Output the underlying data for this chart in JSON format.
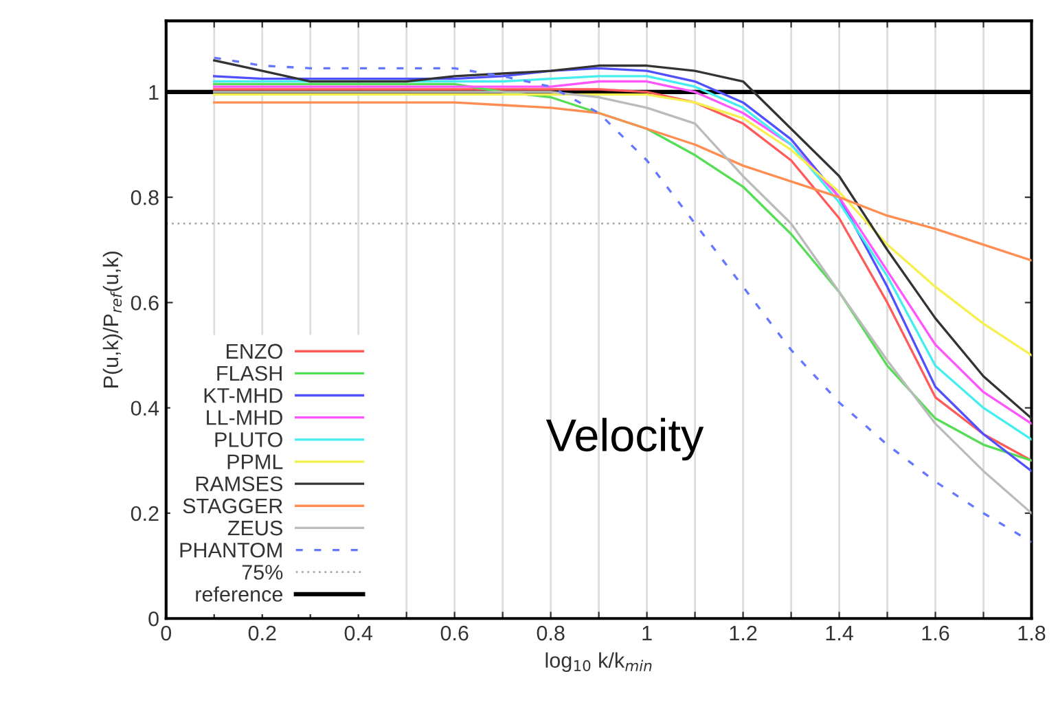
{
  "chart_data": {
    "type": "line",
    "xlabel": "log$_{10}$ k/k$_{min}$",
    "ylabel": "P(u,k)/P$_{ref}$(u,k)",
    "annotations": [
      "Velocity"
    ],
    "x": [
      0.1,
      0.2,
      0.3,
      0.4,
      0.5,
      0.6,
      0.7,
      0.8,
      0.9,
      1.0,
      1.1,
      1.2,
      1.3,
      1.4,
      1.5,
      1.6,
      1.7,
      1.8
    ],
    "series": [
      {
        "name": "ENZO",
        "color": "#ff5a5a",
        "values": [
          1.005,
          1.005,
          1.005,
          1.005,
          1.005,
          1.005,
          1.005,
          1.005,
          1.005,
          1.0,
          0.98,
          0.94,
          0.87,
          0.76,
          0.6,
          0.42,
          0.35,
          0.3
        ]
      },
      {
        "name": "FLASH",
        "color": "#55dd55",
        "values": [
          1.015,
          1.015,
          1.015,
          1.015,
          1.015,
          1.015,
          1.0,
          0.99,
          0.96,
          0.93,
          0.88,
          0.82,
          0.73,
          0.62,
          0.48,
          0.38,
          0.33,
          0.3
        ]
      },
      {
        "name": "KT-MHD",
        "color": "#5050ff",
        "values": [
          1.03,
          1.025,
          1.025,
          1.025,
          1.025,
          1.025,
          1.03,
          1.04,
          1.045,
          1.04,
          1.02,
          0.98,
          0.91,
          0.8,
          0.63,
          0.44,
          0.35,
          0.28
        ]
      },
      {
        "name": "LL-MHD",
        "color": "#ff55ff",
        "values": [
          1.01,
          1.01,
          1.01,
          1.01,
          1.01,
          1.01,
          1.01,
          1.01,
          1.02,
          1.02,
          1.0,
          0.96,
          0.9,
          0.8,
          0.66,
          0.52,
          0.43,
          0.37
        ]
      },
      {
        "name": "PLUTO",
        "color": "#44eeee",
        "values": [
          1.02,
          1.02,
          1.02,
          1.02,
          1.02,
          1.02,
          1.02,
          1.025,
          1.03,
          1.03,
          1.01,
          0.97,
          0.9,
          0.79,
          0.65,
          0.48,
          0.4,
          0.34
        ]
      },
      {
        "name": "PPML",
        "color": "#f5f050",
        "values": [
          0.995,
          0.995,
          0.995,
          0.995,
          0.995,
          0.995,
          0.995,
          0.995,
          0.995,
          0.995,
          0.98,
          0.95,
          0.89,
          0.81,
          0.71,
          0.63,
          0.56,
          0.5
        ]
      },
      {
        "name": "RAMSES",
        "color": "#333333",
        "values": [
          1.06,
          1.04,
          1.02,
          1.02,
          1.02,
          1.03,
          1.035,
          1.04,
          1.05,
          1.05,
          1.04,
          1.02,
          0.93,
          0.84,
          0.7,
          0.57,
          0.46,
          0.38
        ]
      },
      {
        "name": "STAGGER",
        "color": "#ff8c50",
        "values": [
          0.98,
          0.98,
          0.98,
          0.98,
          0.98,
          0.98,
          0.975,
          0.97,
          0.96,
          0.93,
          0.9,
          0.86,
          0.83,
          0.8,
          0.765,
          0.74,
          0.71,
          0.68
        ]
      },
      {
        "name": "ZEUS",
        "color": "#bbbbbb",
        "values": [
          1.0,
          1.0,
          1.0,
          1.0,
          1.0,
          1.0,
          1.0,
          1.0,
          0.99,
          0.97,
          0.94,
          0.84,
          0.75,
          0.62,
          0.49,
          0.37,
          0.28,
          0.2
        ]
      },
      {
        "name": "PHANTOM",
        "color": "#6677ff",
        "line_style": "dashed",
        "values": [
          1.065,
          1.05,
          1.045,
          1.045,
          1.045,
          1.045,
          1.03,
          1.01,
          0.96,
          0.87,
          0.75,
          0.63,
          0.51,
          0.41,
          0.33,
          0.26,
          0.2,
          0.145
        ]
      }
    ],
    "ref_lines": [
      {
        "axis": "y",
        "value": 0.75,
        "label": "75%",
        "color": "#aaaaaa",
        "line_style": "dotted"
      },
      {
        "axis": "y",
        "value": 1,
        "label": "reference",
        "color": "#000000",
        "line_style": "solid"
      }
    ],
    "xlim": [
      0,
      1.8
    ],
    "ylim": [
      0,
      1.135
    ],
    "xticks": [
      0,
      {
        "value": 0.1,
        "label": null
      },
      0.2,
      {
        "value": 0.3,
        "label": null
      },
      0.4,
      {
        "value": 0.5,
        "label": null
      },
      0.6,
      {
        "value": 0.7,
        "label": null
      },
      0.8,
      {
        "value": 0.9,
        "label": null
      },
      1,
      {
        "value": 1.1,
        "label": null
      },
      1.2,
      {
        "value": 1.3,
        "label": null
      },
      1.4,
      {
        "value": 1.5,
        "label": null
      },
      1.6,
      {
        "value": 1.7,
        "label": null
      },
      1.8
    ],
    "yticks": [
      0,
      0.2,
      0.4,
      0.6,
      0.8,
      1
    ],
    "grid": "x",
    "legend": "bottom left"
  }
}
